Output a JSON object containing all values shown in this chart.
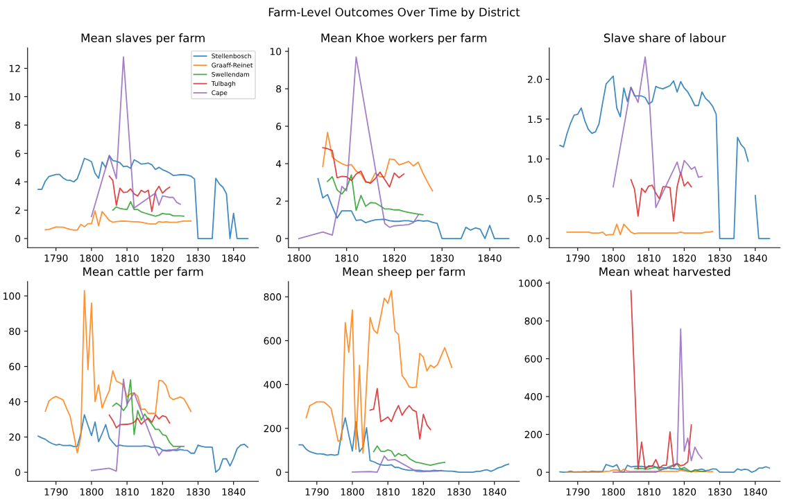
{
  "chart_data": [
    {
      "type": "line",
      "title": "Mean slaves per farm",
      "annotations": [
        "Farm-Level Outcomes Over Time by District"
      ],
      "legend": "top right",
      "grid": false,
      "xlim": [
        1782,
        1847
      ],
      "xticks": [
        1790,
        1800,
        1810,
        1820,
        1830,
        1840
      ],
      "ylim": [
        -0.64,
        13.44
      ],
      "yticks": [
        0,
        2,
        4,
        6,
        8,
        10,
        12
      ],
      "x": [
        1785,
        1786,
        1787,
        1788,
        1789,
        1790,
        1791,
        1792,
        1793,
        1794,
        1795,
        1796,
        1797,
        1798,
        1799,
        1800,
        1801,
        1802,
        1803,
        1804,
        1805,
        1806,
        1807,
        1808,
        1809,
        1810,
        1811,
        1812,
        1813,
        1814,
        1815,
        1816,
        1817,
        1818,
        1819,
        1820,
        1821,
        1822,
        1823,
        1824,
        1825,
        1826,
        1827,
        1828,
        1829,
        1830,
        1831,
        1832,
        1833,
        1834,
        1835,
        1836,
        1837,
        1838,
        1839,
        1840,
        1841,
        1842,
        1843,
        1844
      ],
      "series": [
        {
          "name": "Stellenbosch",
          "color": "#1f77b4",
          "values": [
            3.47,
            3.47,
            4.05,
            4.37,
            4.45,
            4.52,
            4.52,
            4.27,
            4.12,
            4.1,
            4.0,
            4.22,
            4.9,
            5.65,
            5.55,
            5.42,
            4.6,
            4.25,
            5.4,
            5.0,
            5.85,
            5.5,
            5.45,
            5.35,
            5.07,
            5.1,
            4.95,
            5.55,
            5.42,
            5.25,
            5.28,
            5.32,
            5.2,
            4.87,
            5.02,
            4.85,
            4.75,
            4.62,
            4.45,
            4.47,
            4.5,
            4.5,
            4.47,
            4.4,
            4.2,
            0,
            0,
            0,
            0,
            0,
            4.25,
            3.85,
            3.62,
            3.15,
            0,
            1.78,
            0,
            0,
            0,
            0
          ]
        },
        {
          "name": "Graaff-Reinet",
          "color": "#ff7f0e",
          "x": [
            1787,
            1788,
            1789,
            1790,
            1791,
            1792,
            1793,
            1794,
            1795,
            1796,
            1797,
            1798,
            1799,
            1800,
            1801,
            1802,
            1803,
            1804,
            1805,
            1806,
            1807,
            1808,
            1809,
            1810,
            1811,
            1812,
            1813,
            1814,
            1815,
            1816,
            1817,
            1818,
            1819,
            1820,
            1821,
            1822,
            1823,
            1824,
            1825,
            1826,
            1827,
            1828
          ],
          "values": [
            0.62,
            0.65,
            0.73,
            0.82,
            0.8,
            0.8,
            0.72,
            0.65,
            0.6,
            0.6,
            1.0,
            0.83,
            1.05,
            1.05,
            1.95,
            0.9,
            1.9,
            1.6,
            1.28,
            1.15,
            1.2,
            1.22,
            1.23,
            1.22,
            1.2,
            1.18,
            1.18,
            1.15,
            1.1,
            1.05,
            1.02,
            1.02,
            1.2,
            1.15,
            1.18,
            1.15,
            1.15,
            1.15,
            1.2,
            1.23,
            1.23,
            1.23
          ]
        },
        {
          "name": "Swellendam",
          "color": "#2ca02c",
          "x": [
            1806,
            1807,
            1808,
            1809,
            1810,
            1811,
            1812,
            1813,
            1814,
            1815,
            1816,
            1817,
            1818,
            1819,
            1820,
            1821,
            1822,
            1823,
            1824,
            1825,
            1826
          ],
          "values": [
            2.0,
            2.23,
            2.12,
            2.08,
            2.05,
            2.6,
            2.05,
            2.05,
            1.88,
            1.8,
            1.72,
            1.65,
            1.58,
            1.65,
            1.77,
            1.72,
            1.72,
            1.6,
            1.6,
            1.6,
            1.58
          ]
        },
        {
          "name": "Tulbagh",
          "color": "#d62728",
          "x": [
            1805,
            1806,
            1807,
            1808,
            1809,
            1810,
            1811,
            1812,
            1813,
            1814,
            1815,
            1816,
            1817,
            1818,
            1819,
            1820,
            1821,
            1822
          ],
          "values": [
            4.4,
            4.1,
            2.35,
            3.55,
            3.25,
            3.27,
            3.5,
            3.15,
            3.0,
            3.4,
            3.25,
            3.4,
            1.9,
            3.3,
            3.68,
            3.2,
            3.45,
            3.62
          ]
        },
        {
          "name": "Cape",
          "color": "#9467bd",
          "x": [
            1800,
            1805,
            1807,
            1809,
            1812,
            1818,
            1819,
            1820,
            1821,
            1822,
            1823,
            1824,
            1825
          ],
          "values": [
            1.55,
            5.85,
            4.22,
            12.8,
            2.15,
            3.2,
            2.35,
            3.0,
            2.95,
            2.9,
            2.9,
            2.55,
            2.42
          ]
        }
      ]
    },
    {
      "type": "line",
      "title": "Mean Khoe workers per farm",
      "grid": false,
      "xlim": [
        1797.8,
        1846.2
      ],
      "xticks": [
        1800,
        1810,
        1820,
        1830,
        1840
      ],
      "ylim": [
        -0.485,
        10.185
      ],
      "yticks": [
        0,
        2,
        4,
        6,
        8,
        10
      ],
      "series": [
        {
          "color": "#1f77b4",
          "x": [
            1804,
            1805,
            1806,
            1807,
            1808,
            1809,
            1810,
            1811,
            1812,
            1813,
            1814,
            1815,
            1816,
            1817,
            1818,
            1819,
            1820,
            1821,
            1822,
            1823,
            1824,
            1825,
            1826,
            1827,
            1828,
            1829,
            1830,
            1831,
            1832,
            1833,
            1834,
            1835,
            1836,
            1837,
            1838,
            1839,
            1840,
            1841,
            1842,
            1843,
            1844
          ],
          "values": [
            3.2,
            2.17,
            2.35,
            1.7,
            1.1,
            1.48,
            1.48,
            1.48,
            0.97,
            1.0,
            0.85,
            0.93,
            1.0,
            1.02,
            1.03,
            0.95,
            0.92,
            0.92,
            0.95,
            0.95,
            0.9,
            0.97,
            0.93,
            0.95,
            0.87,
            0.8,
            0,
            0,
            0,
            0,
            0,
            0.6,
            0.45,
            0.57,
            0.5,
            0,
            0.7,
            0,
            0,
            0,
            0
          ]
        },
        {
          "color": "#ff7f0e",
          "x": [
            1805,
            1806,
            1807,
            1808,
            1809,
            1810,
            1811,
            1812,
            1813,
            1814,
            1815,
            1816,
            1817,
            1818,
            1819,
            1820,
            1821,
            1822,
            1823,
            1824,
            1825,
            1826,
            1827,
            1828
          ],
          "values": [
            3.85,
            5.67,
            4.35,
            4.15,
            4.0,
            3.9,
            3.95,
            3.6,
            3.45,
            3.0,
            3.0,
            3.5,
            3.3,
            3.3,
            4.25,
            4.22,
            3.93,
            4.02,
            4.12,
            3.88,
            4.08,
            3.5,
            3.0,
            2.55
          ]
        },
        {
          "color": "#2ca02c",
          "x": [
            1806,
            1807,
            1808,
            1809,
            1810,
            1811,
            1812,
            1813,
            1814,
            1815,
            1816,
            1817,
            1818,
            1819,
            1820,
            1821,
            1822,
            1823,
            1824,
            1825,
            1826
          ],
          "values": [
            3.05,
            3.3,
            2.6,
            2.38,
            2.7,
            3.4,
            1.5,
            2.3,
            1.72,
            1.92,
            1.9,
            1.75,
            1.58,
            1.58,
            1.53,
            1.53,
            1.45,
            1.4,
            1.35,
            1.3,
            1.27
          ]
        },
        {
          "color": "#d62728",
          "x": [
            1805,
            1806,
            1807,
            1808,
            1809,
            1810,
            1811,
            1812,
            1813,
            1814,
            1815,
            1816,
            1817,
            1818,
            1819,
            1820,
            1821,
            1822
          ],
          "values": [
            4.85,
            4.8,
            4.7,
            3.25,
            3.32,
            3.3,
            3.1,
            3.45,
            3.6,
            3.05,
            2.95,
            3.2,
            3.55,
            3.15,
            2.75,
            3.5,
            3.25,
            3.45
          ]
        },
        {
          "color": "#9467bd",
          "x": [
            1800,
            1805,
            1807,
            1809,
            1810,
            1812,
            1818,
            1819,
            1820,
            1821,
            1822,
            1823,
            1824,
            1825
          ],
          "values": [
            0,
            0.35,
            0.18,
            2.78,
            2.55,
            9.7,
            0.8,
            0.6,
            0.68,
            0.7,
            0.72,
            0.75,
            0.85,
            1.25
          ]
        }
      ]
    },
    {
      "type": "line",
      "title": "Slave share of labour",
      "grid": false,
      "xlim": [
        1782,
        1847
      ],
      "xticks": [
        1790,
        1800,
        1810,
        1820,
        1830,
        1840
      ],
      "ylim": [
        -0.114,
        2.394
      ],
      "yticks": [
        {
          "value": 0,
          "label": "0.0"
        },
        0.5,
        {
          "value": 1,
          "label": "1.0"
        },
        1.5,
        {
          "value": 2,
          "label": "2.0"
        }
      ],
      "x": [
        1785,
        1786,
        1787,
        1788,
        1789,
        1790,
        1791,
        1792,
        1793,
        1794,
        1795,
        1796,
        1797,
        1798,
        1799,
        1800,
        1801,
        1802,
        1803,
        1804,
        1805,
        1806,
        1807,
        1808,
        1809,
        1810,
        1811,
        1812,
        1813,
        1814,
        1815,
        1816,
        1817,
        1818,
        1819,
        1820,
        1821,
        1822,
        1823,
        1824,
        1825,
        1826,
        1827,
        1828,
        1829,
        1830,
        1831,
        1832,
        1833,
        1834,
        1835,
        1836,
        1837,
        1838,
        1839,
        1840,
        1841,
        1842,
        1843,
        1844
      ],
      "series": [
        {
          "color": "#1f77b4",
          "values": [
            1.17,
            1.15,
            1.32,
            1.45,
            1.55,
            1.56,
            1.64,
            1.48,
            1.37,
            1.32,
            1.34,
            1.44,
            1.7,
            1.94,
            1.99,
            2.04,
            1.64,
            1.53,
            1.89,
            1.72,
            1.9,
            1.79,
            1.79,
            1.79,
            1.77,
            1.69,
            1.72,
            1.91,
            1.89,
            1.88,
            1.9,
            1.92,
            1.98,
            1.84,
            1.97,
            1.89,
            1.84,
            1.76,
            1.67,
            1.67,
            1.84,
            1.76,
            1.72,
            1.66,
            1.56,
            0,
            0,
            0,
            0,
            0,
            1.27,
            1.18,
            1.13,
            0.97,
            null,
            0.54,
            0,
            0,
            0,
            0
          ]
        },
        {
          "color": "#ff7f0e",
          "x": [
            1787,
            1788,
            1789,
            1790,
            1791,
            1792,
            1793,
            1794,
            1795,
            1796,
            1797,
            1798,
            1799,
            1800,
            1801,
            1802,
            1803,
            1804,
            1805,
            1806,
            1807,
            1808,
            1809,
            1810,
            1811,
            1812,
            1813,
            1814,
            1815,
            1816,
            1817,
            1818,
            1819,
            1820,
            1821,
            1822,
            1823,
            1824,
            1825,
            1826,
            1827,
            1828
          ],
          "values": [
            0.08,
            0.08,
            0.08,
            0.08,
            0.08,
            0.08,
            0.08,
            0.07,
            0.07,
            0.07,
            0.08,
            0.04,
            0.05,
            0.05,
            0.18,
            0.05,
            0.18,
            0.13,
            0.08,
            0.06,
            0.07,
            0.07,
            0.07,
            0.07,
            0.07,
            0.07,
            0.07,
            0.07,
            0.07,
            0.07,
            0.07,
            0.07,
            0.08,
            0.07,
            0.07,
            0.07,
            0.07,
            0.07,
            0.07,
            0.08,
            0.08,
            0.09
          ]
        },
        {
          "color": "#d62728",
          "x": [
            1805,
            1806,
            1807,
            1808,
            1809,
            1810,
            1811,
            1812,
            1813,
            1814,
            1815,
            1816,
            1817,
            1818,
            1819,
            1820,
            1821,
            1822
          ],
          "values": [
            0.74,
            0.62,
            0.28,
            0.63,
            0.58,
            0.66,
            0.67,
            0.57,
            0.5,
            0.65,
            0.65,
            0.64,
            0.22,
            0.65,
            0.83,
            0.66,
            0.71,
            0.65
          ]
        },
        {
          "color": "#9467bd",
          "x": [
            1800,
            1805,
            1807,
            1809,
            1810,
            1812,
            1818,
            1819,
            1820,
            1821,
            1822,
            1823,
            1824,
            1825
          ],
          "values": [
            0.65,
            1.9,
            1.71,
            2.28,
            1.88,
            0.39,
            0.96,
            0.8,
            0.98,
            0.93,
            0.87,
            0.9,
            0.77,
            0.78
          ]
        }
      ]
    },
    {
      "type": "line",
      "title": "Mean cattle per farm",
      "grid": false,
      "xlim": [
        1782,
        1847
      ],
      "xticks": [
        1790,
        1800,
        1810,
        1820,
        1830,
        1840
      ],
      "ylim": [
        -5.15,
        108.15
      ],
      "yticks": [
        0,
        20,
        40,
        60,
        80,
        100
      ],
      "x": [
        1785,
        1786,
        1787,
        1788,
        1789,
        1790,
        1791,
        1792,
        1793,
        1794,
        1795,
        1796,
        1797,
        1798,
        1799,
        1800,
        1801,
        1802,
        1803,
        1804,
        1805,
        1806,
        1807,
        1808,
        1809,
        1810,
        1811,
        1812,
        1813,
        1814,
        1815,
        1816,
        1817,
        1818,
        1819,
        1820,
        1821,
        1822,
        1823,
        1824,
        1825,
        1826,
        1827,
        1828,
        1829,
        1830,
        1831,
        1832,
        1833,
        1834,
        1835,
        1836,
        1837,
        1838,
        1839,
        1840,
        1841,
        1842,
        1843,
        1844
      ],
      "series": [
        {
          "color": "#1f77b4",
          "values": [
            20.5,
            19.5,
            18.7,
            17.2,
            16.2,
            15.5,
            15.8,
            15.2,
            15.2,
            15.3,
            14.6,
            14.7,
            22,
            32.6,
            26.6,
            20.8,
            28.5,
            17.3,
            22,
            27,
            19.5,
            16.9,
            14.7,
            15.4,
            15,
            14.8,
            14.8,
            14.8,
            14.8,
            14.8,
            15,
            14.8,
            14.1,
            14.3,
            13.9,
            12.6,
            12.4,
            12.6,
            12.5,
            12.3,
            12.9,
            12.5,
            12.4,
            10.8,
            10.8,
            15.4,
            14.7,
            14.3,
            14.3,
            14.2,
            0,
            1.8,
            7.6,
            7.7,
            3.6,
            7.9,
            13.4,
            15.4,
            15.9,
            14.2
          ]
        },
        {
          "color": "#ff7f0e",
          "x": [
            1787,
            1788,
            1789,
            1790,
            1791,
            1792,
            1793,
            1794,
            1795,
            1796,
            1797,
            1798,
            1799,
            1800,
            1801,
            1802,
            1803,
            1804,
            1805,
            1806,
            1807,
            1808,
            1809,
            1810,
            1811,
            1812,
            1813,
            1814,
            1815,
            1816,
            1817,
            1818,
            1819,
            1820,
            1821,
            1822,
            1823,
            1824,
            1825,
            1826,
            1827,
            1828
          ],
          "values": [
            34.6,
            40.4,
            42,
            43,
            42,
            41,
            36.1,
            31.7,
            21.4,
            11,
            20.1,
            103,
            58.2,
            96,
            40.1,
            49.5,
            36.5,
            41.7,
            46.3,
            57.5,
            51.7,
            50.7,
            49.5,
            42.7,
            44.6,
            45,
            43.1,
            35.6,
            35.9,
            33.4,
            33.4,
            33.3,
            52,
            51.7,
            49.2,
            42.7,
            41.2,
            41.9,
            42.7,
            41.7,
            38.2,
            34.5
          ]
        },
        {
          "color": "#2ca02c",
          "x": [
            1806,
            1807,
            1808,
            1809,
            1810,
            1811,
            1812,
            1813,
            1814,
            1815,
            1816,
            1817,
            1818,
            1819,
            1820,
            1821,
            1822,
            1823,
            1824,
            1825,
            1826
          ],
          "values": [
            37.5,
            39.2,
            37.8,
            35,
            37.8,
            52.4,
            21.4,
            35,
            29.5,
            33,
            29.8,
            27.2,
            24.3,
            24.3,
            21.4,
            20.8,
            16.9,
            14.7,
            14.7,
            14.7,
            14.7
          ]
        },
        {
          "color": "#d62728",
          "x": [
            1805,
            1806,
            1807,
            1808,
            1809,
            1810,
            1811,
            1812,
            1813,
            1814,
            1815,
            1816,
            1817,
            1818,
            1819,
            1820,
            1821,
            1822
          ],
          "values": [
            32.4,
            29.4,
            25.2,
            27,
            27.1,
            27.2,
            27.5,
            28.3,
            30.7,
            27.2,
            29.2,
            30.7,
            28.3,
            32.6,
            30.2,
            32.1,
            31.4,
            27.9
          ]
        },
        {
          "color": "#9467bd",
          "x": [
            1800,
            1805,
            1807,
            1809,
            1810,
            1812,
            1818,
            1819,
            1820,
            1821,
            1822,
            1823,
            1824,
            1825
          ],
          "values": [
            1,
            2.3,
            0.6,
            52.8,
            38.6,
            45,
            13.5,
            9.5,
            12.4,
            12,
            12,
            12.8,
            13,
            14.3
          ]
        }
      ]
    },
    {
      "type": "line",
      "title": "Mean sheep per farm",
      "grid": false,
      "xlim": [
        1782,
        1847
      ],
      "xticks": [
        1790,
        1800,
        1810,
        1820,
        1830,
        1840
      ],
      "ylim": [
        -41.4,
        869.4
      ],
      "yticks": [
        0,
        200,
        400,
        600,
        800
      ],
      "x": [
        1785,
        1786,
        1787,
        1788,
        1789,
        1790,
        1791,
        1792,
        1793,
        1794,
        1795,
        1796,
        1797,
        1798,
        1799,
        1800,
        1801,
        1802,
        1803,
        1804,
        1805,
        1806,
        1807,
        1808,
        1809,
        1810,
        1811,
        1812,
        1813,
        1814,
        1815,
        1816,
        1817,
        1818,
        1819,
        1820,
        1821,
        1822,
        1823,
        1824,
        1825,
        1826,
        1827,
        1828,
        1829,
        1830,
        1831,
        1832,
        1833,
        1834,
        1835,
        1836,
        1837,
        1838,
        1839,
        1840,
        1841,
        1842,
        1843,
        1844
      ],
      "series": [
        {
          "color": "#1f77b4",
          "values": [
            125,
            125,
            105,
            94,
            89,
            84,
            84,
            82,
            78,
            81,
            78,
            81,
            180,
            248,
            170,
            97,
            231,
            93,
            115,
            203,
            53,
            48,
            40,
            34,
            32,
            32,
            34,
            22,
            22,
            15,
            11,
            9,
            9,
            9,
            9,
            6,
            6,
            6,
            9,
            7,
            7,
            6,
            5,
            5,
            3,
            0,
            0,
            0,
            0,
            0,
            4,
            4,
            9,
            11,
            4,
            11,
            20,
            24,
            32,
            37
          ]
        },
        {
          "color": "#ff7f0e",
          "x": [
            1787,
            1788,
            1789,
            1790,
            1791,
            1792,
            1793,
            1794,
            1795,
            1796,
            1797,
            1798,
            1799,
            1800,
            1801,
            1802,
            1803,
            1804,
            1805,
            1806,
            1807,
            1808,
            1809,
            1810,
            1811,
            1812,
            1813,
            1814,
            1815,
            1816,
            1817,
            1818,
            1819,
            1820,
            1821,
            1822,
            1823,
            1824,
            1825,
            1826,
            1827,
            1828
          ],
          "values": [
            248,
            304,
            312,
            321,
            321,
            320,
            307,
            291,
            219,
            141,
            149,
            682,
            547,
            740,
            105,
            488,
            87,
            400,
            706,
            649,
            633,
            711,
            794,
            770,
            828,
            644,
            628,
            441,
            420,
            389,
            386,
            389,
            542,
            524,
            462,
            488,
            477,
            491,
            530,
            568,
            524,
            478
          ]
        },
        {
          "color": "#2ca02c",
          "x": [
            1806,
            1807,
            1808,
            1809,
            1810,
            1811,
            1812,
            1813,
            1814,
            1815,
            1816,
            1817,
            1818,
            1819,
            1820,
            1821,
            1822,
            1823,
            1824,
            1825,
            1826
          ],
          "values": [
            94,
            120,
            96,
            94,
            102,
            97,
            72,
            86,
            76,
            81,
            63,
            53,
            45,
            43,
            39,
            35,
            32,
            36,
            40,
            43,
            45
          ]
        },
        {
          "color": "#d62728",
          "x": [
            1805,
            1806,
            1807,
            1808,
            1809,
            1810,
            1811,
            1812,
            1813,
            1814,
            1815,
            1816,
            1817,
            1818,
            1819,
            1820,
            1821,
            1822
          ],
          "values": [
            283,
            288,
            382,
            231,
            241,
            252,
            231,
            273,
            304,
            260,
            285,
            304,
            284,
            276,
            151,
            264,
            216,
            195
          ]
        },
        {
          "color": "#9467bd",
          "x": [
            1800,
            1805,
            1807,
            1809,
            1810,
            1812,
            1818,
            1819,
            1820,
            1821,
            1822,
            1823,
            1824,
            1825
          ],
          "values": [
            1,
            3,
            0,
            74,
            55,
            58,
            4,
            3,
            3,
            4,
            4,
            5,
            5,
            8
          ]
        }
      ]
    },
    {
      "type": "line",
      "title": "Mean wheat harvested",
      "grid": false,
      "xlim": [
        1782,
        1847
      ],
      "xticks": [
        1790,
        1800,
        1810,
        1820,
        1830,
        1840
      ],
      "ylim": [
        -48,
        1008
      ],
      "yticks": [
        0,
        200,
        400,
        600,
        800,
        1000
      ],
      "x": [
        1785,
        1786,
        1787,
        1788,
        1789,
        1790,
        1791,
        1792,
        1793,
        1794,
        1795,
        1796,
        1797,
        1798,
        1799,
        1800,
        1801,
        1802,
        1803,
        1804,
        1805,
        1806,
        1807,
        1808,
        1809,
        1810,
        1811,
        1812,
        1813,
        1814,
        1815,
        1816,
        1817,
        1818,
        1819,
        1820,
        1821,
        1822,
        1823,
        1824,
        1825,
        1826,
        1827,
        1828,
        1829,
        1830,
        1831,
        1832,
        1833,
        1834,
        1835,
        1836,
        1837,
        1838,
        1839,
        1840,
        1841,
        1842,
        1843,
        1844
      ],
      "series": [
        {
          "color": "#1f77b4",
          "values": [
            2,
            0,
            1,
            6,
            1,
            2,
            2,
            4,
            1,
            6,
            4,
            4,
            4,
            41,
            34,
            29,
            40,
            4,
            1,
            37,
            28,
            31,
            31,
            31,
            28,
            28,
            34,
            28,
            25,
            24,
            23,
            20,
            19,
            17,
            17,
            13,
            6,
            4,
            11,
            13,
            17,
            8,
            11,
            18,
            17,
            0,
            0,
            0,
            0,
            0,
            18,
            11,
            16,
            13,
            0,
            7,
            22,
            22,
            29,
            22
          ]
        },
        {
          "color": "#ff7f0e",
          "x": [
            1787,
            1788,
            1789,
            1790,
            1791,
            1792,
            1793,
            1794,
            1795,
            1796,
            1797,
            1798,
            1799,
            1800,
            1801,
            1802,
            1803,
            1804,
            1805,
            1806,
            1807,
            1808,
            1809,
            1810,
            1811,
            1812,
            1813,
            1814,
            1815,
            1816,
            1817,
            1818,
            1819,
            1820,
            1821,
            1822,
            1823,
            1824,
            1825,
            1826,
            1827,
            1828
          ],
          "values": [
            0,
            0,
            0,
            0,
            0,
            0,
            0,
            0,
            0,
            0,
            1,
            5,
            6,
            11,
            13,
            4,
            16,
            7,
            4,
            5,
            5,
            5,
            5,
            5,
            5,
            5,
            5,
            5,
            5,
            5,
            5,
            5,
            10,
            7,
            5,
            4,
            4,
            4,
            4,
            4,
            3,
            3
          ]
        },
        {
          "color": "#2ca02c",
          "x": [
            1806,
            1807,
            1808,
            1809,
            1810,
            1811,
            1812,
            1813,
            1814,
            1815,
            1816,
            1817,
            1818,
            1819,
            1820,
            1821,
            1822,
            1823,
            1824,
            1825,
            1826
          ],
          "values": [
            20,
            19,
            20,
            17,
            18,
            22,
            28,
            13,
            17,
            19,
            25,
            37,
            43,
            17,
            25,
            13,
            1,
            13,
            7,
            5,
            5
          ]
        },
        {
          "color": "#d62728",
          "x": [
            1805,
            1807,
            1808,
            1809,
            1810,
            1811,
            1812,
            1813,
            1814,
            1815,
            1816,
            1817,
            1818,
            1819,
            1820,
            1821,
            1822
          ],
          "values": [
            960,
            17,
            160,
            17,
            34,
            31,
            67,
            22,
            37,
            37,
            214,
            29,
            47,
            34,
            40,
            55,
            250
          ]
        },
        {
          "color": "#9467bd",
          "x": [
            1800,
            1812,
            1818,
            1819,
            1820,
            1821,
            1822,
            1823,
            1824,
            1825
          ],
          "values": [
            0,
            0,
            47,
            758,
            111,
            181,
            61,
            133,
            97,
            73
          ]
        }
      ]
    }
  ]
}
